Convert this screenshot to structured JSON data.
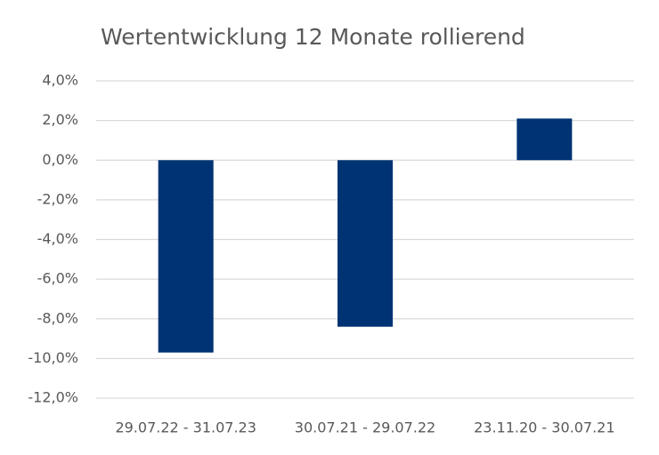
{
  "chart_data": {
    "type": "bar",
    "title": "Wertentwicklung 12 Monate rollierend",
    "categories": [
      "29.07.22 - 31.07.23",
      "30.07.21 - 29.07.22",
      "23.11.20 - 30.07.21"
    ],
    "values": [
      -9.7,
      -8.4,
      2.1
    ],
    "color": "#003373",
    "ylim": [
      -12,
      4
    ],
    "yticks": [
      {
        "value": 4,
        "label": "4,0%"
      },
      {
        "value": 2,
        "label": "2,0%"
      },
      {
        "value": 0,
        "label": "0,0%"
      },
      {
        "value": -2,
        "label": "-2,0%"
      },
      {
        "value": -4,
        "label": "-4,0%"
      },
      {
        "value": -6,
        "label": "-6,0%"
      },
      {
        "value": -8,
        "label": "-8,0%"
      },
      {
        "value": -10,
        "label": "-10,0%"
      },
      {
        "value": -12,
        "label": "-12,0%"
      }
    ],
    "grid": true
  }
}
